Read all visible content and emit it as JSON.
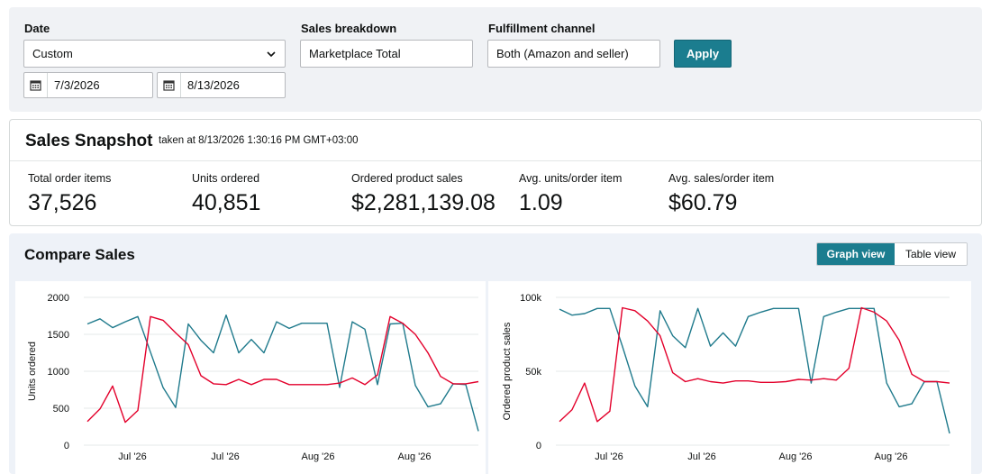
{
  "filters": {
    "date": {
      "label": "Date",
      "value": "Custom",
      "start": "7/3/2026",
      "end": "8/13/2026"
    },
    "sales_breakdown": {
      "label": "Sales breakdown",
      "value": "Marketplace Total"
    },
    "fulfillment": {
      "label": "Fulfillment channel",
      "value": "Both (Amazon and seller)"
    },
    "apply_label": "Apply"
  },
  "snapshot": {
    "title": "Sales Snapshot",
    "subtitle": "taken at 8/13/2026 1:30:16 PM GMT+03:00",
    "metrics": [
      {
        "label": "Total order items",
        "value": "37,526"
      },
      {
        "label": "Units ordered",
        "value": "40,851"
      },
      {
        "label": "Ordered product sales",
        "value": "$2,281,139.08"
      },
      {
        "label": "Avg. units/order item",
        "value": "1.09"
      },
      {
        "label": "Avg. sales/order item",
        "value": "$60.79"
      }
    ]
  },
  "compare": {
    "title": "Compare Sales",
    "views": [
      "Graph view",
      "Table view"
    ],
    "active_view": "Graph view"
  },
  "colors": {
    "accent": "#1b7d8f",
    "teal_series": "#1f7a8c",
    "red_series": "#e3002b"
  },
  "chart_data": [
    {
      "type": "line",
      "ylabel": "Units ordered",
      "ylim": [
        0,
        2000
      ],
      "yticks": [
        "0",
        "500",
        "1000",
        "1500",
        "2000"
      ],
      "xticks": [
        "Jul '26",
        "Jul '26",
        "Aug '26",
        "Aug '26"
      ],
      "grid": true,
      "series": [
        {
          "color": "#1f7a8c",
          "values": [
            1640,
            1710,
            1590,
            1670,
            1740,
            1260,
            780,
            510,
            1640,
            1420,
            1250,
            1760,
            1250,
            1430,
            1250,
            1670,
            1580,
            1650,
            1650,
            1650,
            780,
            1670,
            1570,
            820,
            1640,
            1650,
            810,
            520,
            560,
            830,
            820,
            190
          ]
        },
        {
          "color": "#e3002b",
          "values": [
            320,
            490,
            800,
            310,
            470,
            1740,
            1690,
            1520,
            1360,
            940,
            830,
            820,
            890,
            820,
            890,
            890,
            820,
            820,
            820,
            820,
            840,
            910,
            820,
            950,
            1740,
            1650,
            1500,
            1250,
            930,
            830,
            830,
            860
          ]
        }
      ]
    },
    {
      "type": "line",
      "ylabel": "Ordered product sales",
      "ylim": [
        0,
        100000
      ],
      "yticks": [
        "0",
        "50k",
        "100k"
      ],
      "xticks": [
        "Jul '26",
        "Jul '26",
        "Aug '26",
        "Aug '26"
      ],
      "grid": true,
      "series": [
        {
          "color": "#1f7a8c",
          "values": [
            92000,
            88000,
            89000,
            92500,
            92500,
            67000,
            40000,
            26000,
            91000,
            74000,
            66000,
            92500,
            67000,
            76000,
            67000,
            87000,
            90000,
            92500,
            92500,
            92500,
            42000,
            87000,
            90000,
            92500,
            92500,
            92500,
            42000,
            26000,
            28000,
            43000,
            43000,
            8000
          ]
        },
        {
          "color": "#e3002b",
          "values": [
            16000,
            24000,
            42000,
            16000,
            23000,
            93000,
            91000,
            84000,
            74000,
            49000,
            43000,
            45000,
            43000,
            42000,
            43500,
            43500,
            42500,
            42500,
            43000,
            44500,
            44000,
            45000,
            44000,
            52000,
            93000,
            90000,
            84000,
            71000,
            48000,
            43000,
            43000,
            42000
          ]
        }
      ]
    }
  ]
}
